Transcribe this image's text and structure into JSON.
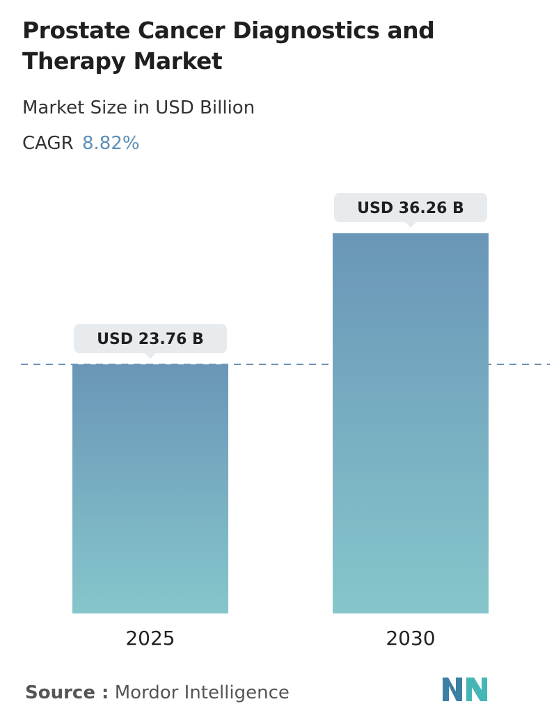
{
  "title": "Prostate Cancer Diagnostics and Therapy Market",
  "subtitle": "Market Size in USD Billion",
  "cagr_label": "CAGR",
  "cagr_value": "8.82%",
  "source_label": "Source :",
  "source_name": "Mordor Intelligence",
  "logo_name": "mordor-intelligence-logo",
  "colors": {
    "bar_top": "#6a96b8",
    "bar_bottom": "#86c6cb",
    "label_bg": "#e8ebee",
    "reference_line": "#5e88ad",
    "cagr": "#5b8fb9"
  },
  "chart_data": {
    "type": "bar",
    "categories": [
      "2025",
      "2030"
    ],
    "values": [
      23.76,
      36.26
    ],
    "data_labels": [
      "USD 23.76 B",
      "USD 36.26 B"
    ],
    "unit": "USD Billion",
    "ylim": [
      0,
      40
    ],
    "reference_line": 23.76,
    "grid": false,
    "legend": "none"
  }
}
